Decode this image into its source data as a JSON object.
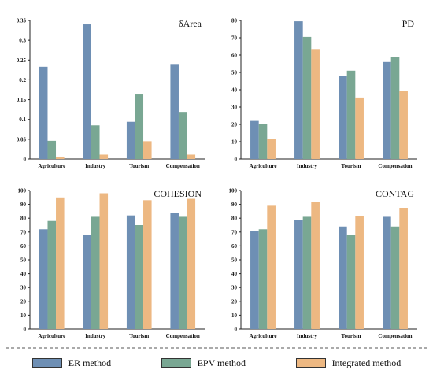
{
  "colors": {
    "er": "#6e8fb4",
    "epv": "#79a793",
    "integrated": "#edb882",
    "axis": "#222222"
  },
  "legend": {
    "er": "ER method",
    "epv": "EPV method",
    "integrated": "Integrated method"
  },
  "chart_data": [
    {
      "type": "bar",
      "title": "δArea",
      "categories": [
        "Agriculture",
        "Industry",
        "Tourism",
        "Compensation"
      ],
      "ylim": [
        0,
        0.35
      ],
      "yticks": [
        "0",
        "0.05",
        "0.1",
        "0.15",
        "0.2",
        "0.25",
        "0.3",
        "0.35"
      ],
      "series": [
        {
          "name": "ER method",
          "values": [
            0.233,
            0.34,
            0.094,
            0.24
          ]
        },
        {
          "name": "EPV method",
          "values": [
            0.046,
            0.085,
            0.163,
            0.119
          ]
        },
        {
          "name": "Integrated method",
          "values": [
            0.006,
            0.011,
            0.045,
            0.011
          ]
        }
      ]
    },
    {
      "type": "bar",
      "title": "PD",
      "categories": [
        "Agriculture",
        "Industry",
        "Tourism",
        "Compensation"
      ],
      "ylim": [
        0,
        80
      ],
      "yticks": [
        "0",
        "10",
        "20",
        "30",
        "40",
        "50",
        "60",
        "70",
        "80"
      ],
      "series": [
        {
          "name": "ER method",
          "values": [
            22,
            79.5,
            48,
            56
          ]
        },
        {
          "name": "EPV method",
          "values": [
            20,
            70.5,
            51,
            59
          ]
        },
        {
          "name": "Integrated method",
          "values": [
            11.5,
            63.5,
            35.5,
            39.5
          ]
        }
      ]
    },
    {
      "type": "bar",
      "title": "COHESION",
      "categories": [
        "Agriculture",
        "Industry",
        "Tourism",
        "Compensation"
      ],
      "ylim": [
        0,
        100
      ],
      "yticks": [
        "0",
        "10",
        "20",
        "30",
        "40",
        "50",
        "60",
        "70",
        "80",
        "90",
        "100"
      ],
      "series": [
        {
          "name": "ER method",
          "values": [
            72,
            68,
            82,
            84
          ]
        },
        {
          "name": "EPV method",
          "values": [
            78,
            81,
            75,
            81
          ]
        },
        {
          "name": "Integrated method",
          "values": [
            95,
            98,
            93,
            94
          ]
        }
      ]
    },
    {
      "type": "bar",
      "title": "CONTAG",
      "categories": [
        "Agriculture",
        "Industry",
        "Tourism",
        "Compensation"
      ],
      "ylim": [
        0,
        100
      ],
      "yticks": [
        "0",
        "10",
        "20",
        "30",
        "40",
        "50",
        "60",
        "70",
        "80",
        "90",
        "100"
      ],
      "series": [
        {
          "name": "ER method",
          "values": [
            70.5,
            78.5,
            74,
            81
          ]
        },
        {
          "name": "EPV method",
          "values": [
            72,
            81,
            68,
            74
          ]
        },
        {
          "name": "Integrated method",
          "values": [
            89,
            91.5,
            81.5,
            87.5
          ]
        }
      ]
    }
  ]
}
